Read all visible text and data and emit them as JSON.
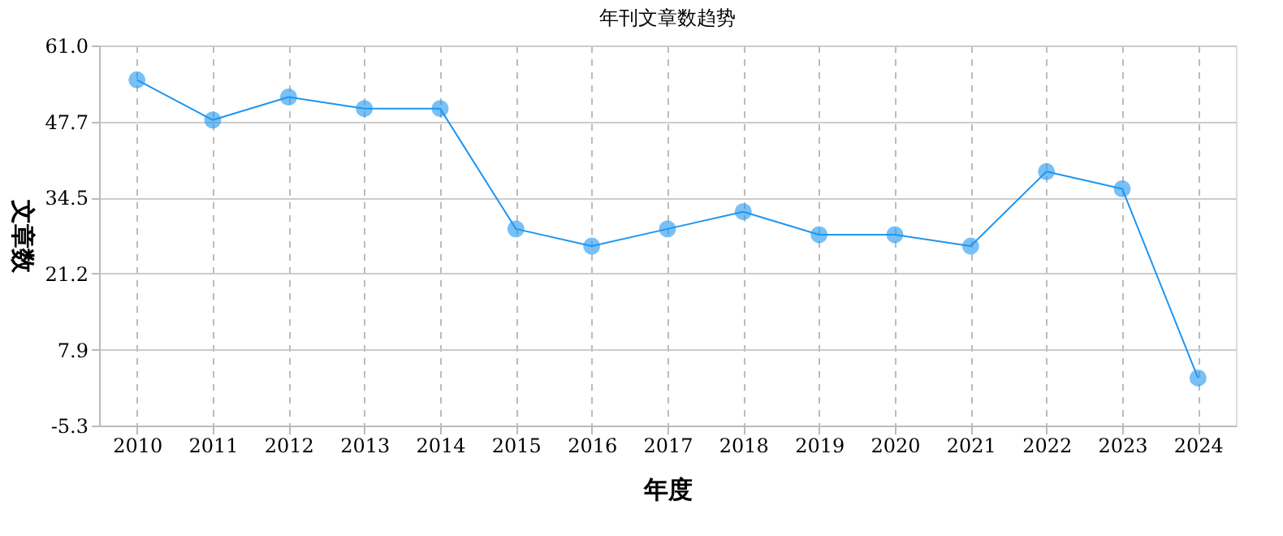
{
  "chart_data": {
    "type": "line",
    "title": "年刊文章数趋势",
    "xlabel": "年度",
    "ylabel": "文章数",
    "categories": [
      "2010",
      "2011",
      "2012",
      "2013",
      "2014",
      "2015",
      "2016",
      "2017",
      "2018",
      "2019",
      "2020",
      "2021",
      "2022",
      "2023",
      "2024"
    ],
    "series": [
      {
        "color": "#1e96f0",
        "values": [
          55,
          48,
          52,
          50,
          50,
          29,
          26,
          29,
          32,
          28,
          28,
          26,
          39,
          36,
          3
        ]
      }
    ],
    "ylim": [
      -5.3,
      61.0
    ],
    "yticks": [
      -5.3,
      7.9,
      21.2,
      34.5,
      47.7,
      {
        "value": 61,
        "label": "61.0"
      }
    ],
    "grid": true,
    "marker": "circle",
    "line_style": "solid"
  }
}
